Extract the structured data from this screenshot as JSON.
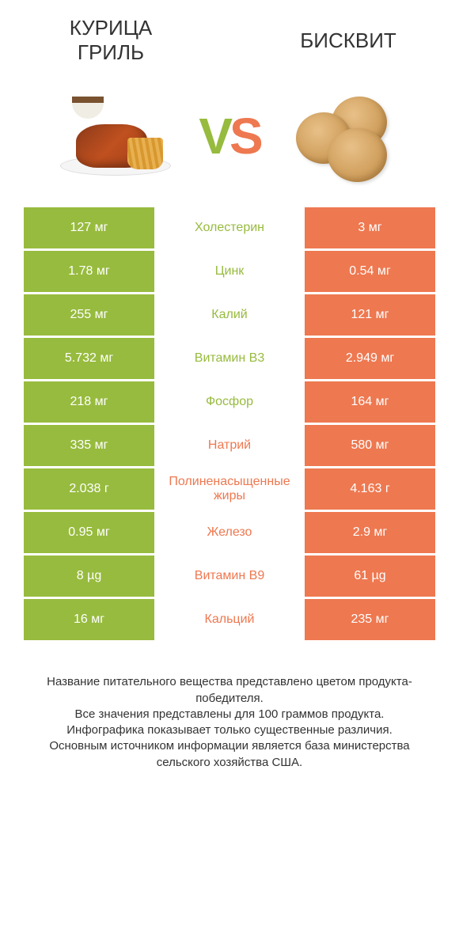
{
  "colors": {
    "green": "#97bb3e",
    "orange": "#ee7850",
    "text": "#333333",
    "background": "#ffffff"
  },
  "header": {
    "left_title": "КУРИЦА\nГРИЛЬ",
    "right_title": "БИСКВИТ",
    "vs_v": "V",
    "vs_s": "S"
  },
  "rows": [
    {
      "left": "127 мг",
      "label": "Холестерин",
      "right": "3 мг",
      "winner": "left"
    },
    {
      "left": "1.78 мг",
      "label": "Цинк",
      "right": "0.54 мг",
      "winner": "left"
    },
    {
      "left": "255 мг",
      "label": "Калий",
      "right": "121 мг",
      "winner": "left"
    },
    {
      "left": "5.732 мг",
      "label": "Витамин B3",
      "right": "2.949 мг",
      "winner": "left"
    },
    {
      "left": "218 мг",
      "label": "Фосфор",
      "right": "164 мг",
      "winner": "left"
    },
    {
      "left": "335 мг",
      "label": "Натрий",
      "right": "580 мг",
      "winner": "right"
    },
    {
      "left": "2.038 г",
      "label": "Полиненасыщенные жиры",
      "right": "4.163 г",
      "winner": "right"
    },
    {
      "left": "0.95 мг",
      "label": "Железо",
      "right": "2.9 мг",
      "winner": "right"
    },
    {
      "left": "8 µg",
      "label": "Витамин B9",
      "right": "61 µg",
      "winner": "right"
    },
    {
      "left": "16 мг",
      "label": "Кальций",
      "right": "235 мг",
      "winner": "right"
    }
  ],
  "footer": {
    "line1": "Название питательного вещества представлено цветом продукта-победителя.",
    "line2": "Все значения представлены для 100 граммов продукта.",
    "line3": "Инфографика показывает только существенные различия.",
    "line4": "Основным источником информации является база министерства сельского хозяйства США."
  }
}
